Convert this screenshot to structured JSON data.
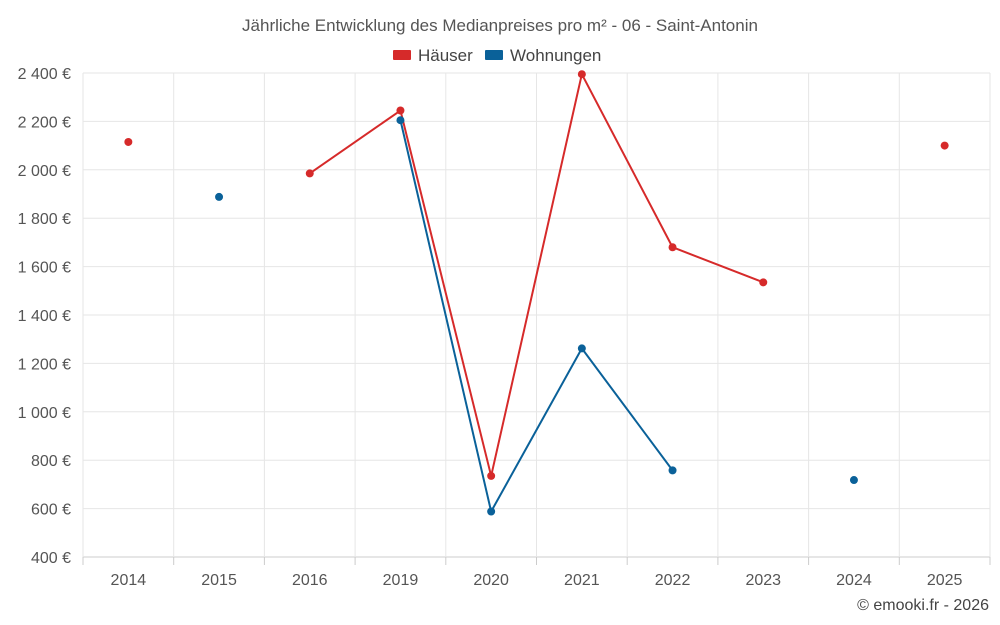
{
  "chart_data": {
    "type": "line",
    "title": "Jährliche Entwicklung des Medianpreises pro m² - 06 - Saint-Antonin",
    "categories": [
      "2014",
      "2015",
      "2016",
      "2019",
      "2020",
      "2021",
      "2022",
      "2023",
      "2024",
      "2025"
    ],
    "y_ticks": [
      "400 €",
      "600 €",
      "800 €",
      "1 000 €",
      "1 200 €",
      "1 400 €",
      "1 600 €",
      "1 800 €",
      "2 000 €",
      "2 200 €",
      "2 400 €"
    ],
    "ylim": [
      400,
      2400
    ],
    "grid": true,
    "legend_position": "top-center",
    "series": [
      {
        "name": "Häuser",
        "color": "#d62a2a",
        "values": [
          2115,
          null,
          1985,
          2245,
          735,
          2395,
          1680,
          1535,
          null,
          2100
        ]
      },
      {
        "name": "Wohnungen",
        "color": "#0a6199",
        "values": [
          null,
          1888,
          null,
          2205,
          588,
          1262,
          758,
          null,
          718,
          null
        ]
      }
    ]
  },
  "credit": "© emooki.fr - 2026"
}
